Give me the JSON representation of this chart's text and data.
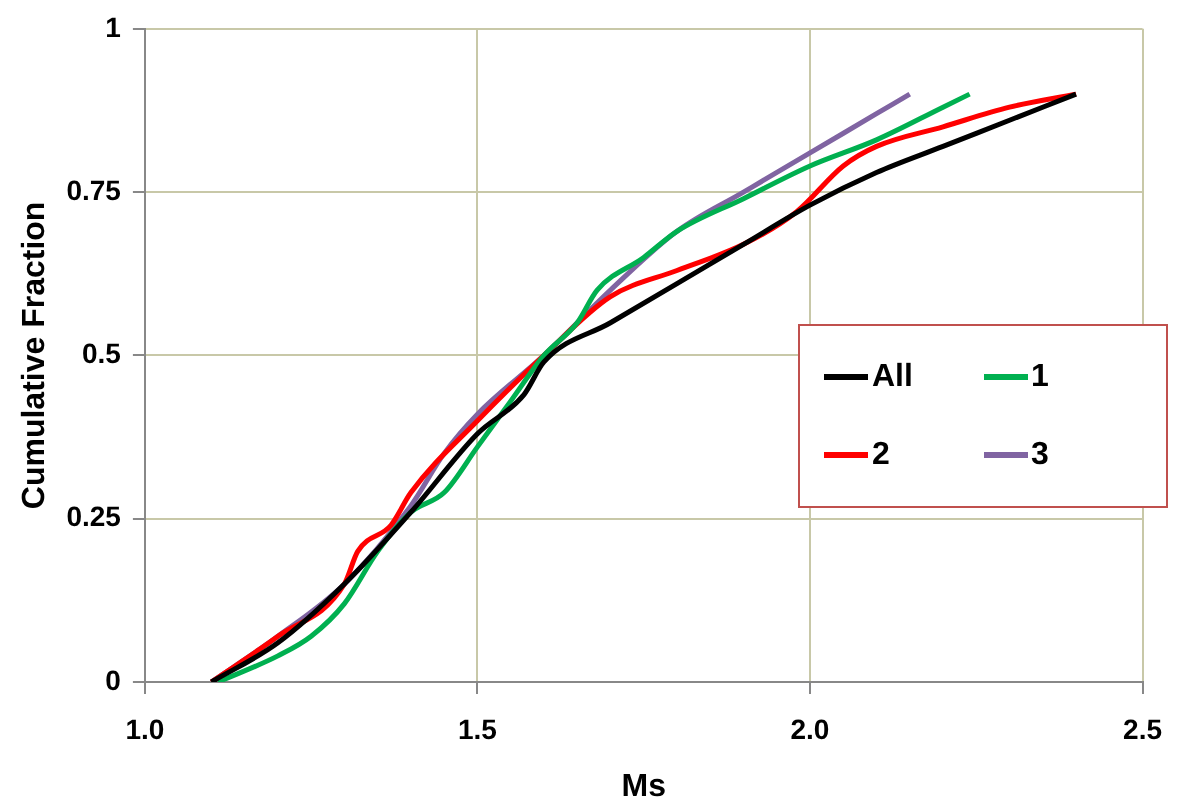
{
  "chart_data": {
    "type": "line",
    "xlabel": "Ms",
    "ylabel": "Cumulative Fraction",
    "xlim": [
      1.0,
      2.5
    ],
    "xticks": [
      {
        "value": 1.0,
        "label": "1.0"
      },
      1.5,
      {
        "value": 2.0,
        "label": "2.0"
      },
      2.5
    ],
    "ylim": [
      0,
      1
    ],
    "yticks": [
      0,
      0.25,
      0.5,
      0.75,
      1
    ],
    "grid": true,
    "legend": "right",
    "marker": "none",
    "line_style": "solid",
    "series": [
      {
        "name": "All",
        "color": "#000000",
        "x": [
          1.1,
          1.2,
          1.3,
          1.4,
          1.5,
          1.57,
          1.6,
          1.7,
          1.8,
          1.9,
          2.0,
          2.1,
          2.2,
          2.3,
          2.4
        ],
        "values": [
          0,
          0.06,
          0.15,
          0.26,
          0.38,
          0.44,
          0.49,
          0.55,
          0.61,
          0.67,
          0.73,
          0.78,
          0.82,
          0.86,
          0.9
        ]
      },
      {
        "name": "1",
        "color": "#00b050",
        "x": [
          1.11,
          1.2,
          1.25,
          1.3,
          1.35,
          1.4,
          1.45,
          1.5,
          1.55,
          1.6,
          1.65,
          1.68,
          1.75,
          1.8,
          1.9,
          2.0,
          2.1,
          2.2,
          2.24
        ],
        "values": [
          0,
          0.04,
          0.07,
          0.12,
          0.2,
          0.26,
          0.29,
          0.36,
          0.43,
          0.5,
          0.55,
          0.6,
          0.65,
          0.69,
          0.74,
          0.79,
          0.83,
          0.88,
          0.9
        ]
      },
      {
        "name": "2",
        "color": "#ff0000",
        "x": [
          1.1,
          1.2,
          1.3,
          1.32,
          1.37,
          1.4,
          1.5,
          1.6,
          1.7,
          1.8,
          1.9,
          1.98,
          2.05,
          2.1,
          2.2,
          2.3,
          2.4
        ],
        "values": [
          0,
          0.07,
          0.15,
          0.2,
          0.24,
          0.29,
          0.4,
          0.5,
          0.59,
          0.63,
          0.67,
          0.72,
          0.79,
          0.82,
          0.85,
          0.88,
          0.9
        ]
      },
      {
        "name": "3",
        "color": "#8064a2",
        "x": [
          1.1,
          1.2,
          1.3,
          1.4,
          1.45,
          1.5,
          1.6,
          1.7,
          1.8,
          1.9,
          2.0,
          2.1,
          2.15
        ],
        "values": [
          0,
          0.07,
          0.15,
          0.27,
          0.35,
          0.41,
          0.5,
          0.6,
          0.69,
          0.75,
          0.81,
          0.87,
          0.9
        ]
      }
    ]
  }
}
